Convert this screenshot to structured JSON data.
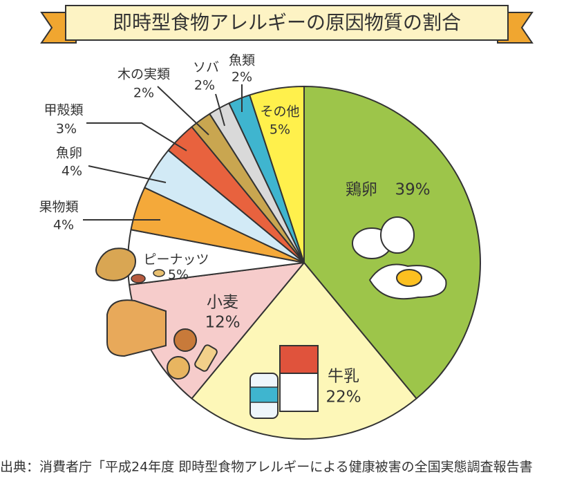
{
  "chart_data": {
    "type": "pie",
    "title": "即時型食物アレルギーの原因物質の割合",
    "categories": [
      "鶏卵",
      "牛乳",
      "小麦",
      "ピーナッツ",
      "果物類",
      "魚卵",
      "甲殻類",
      "木の実類",
      "ソバ",
      "魚類",
      "その他"
    ],
    "values": [
      39,
      22,
      12,
      5,
      4,
      4,
      3,
      2,
      2,
      2,
      5
    ],
    "value_labels": [
      "39%",
      "22%",
      "12%",
      "5%",
      "4%",
      "4%",
      "3%",
      "2%",
      "2%",
      "2%",
      "5%"
    ],
    "colors": [
      "#9dc54a",
      "#fdf7b8",
      "#f6cccb",
      "#ffffff",
      "#f4a93a",
      "#d2eaf6",
      "#e8623e",
      "#c9a650",
      "#d9d9d9",
      "#3fb5cf",
      "#fff04c"
    ],
    "source": "出典：消費者庁「平成24年度 即時型食物アレルギーによる健康被害の全国実態調査報告書"
  }
}
